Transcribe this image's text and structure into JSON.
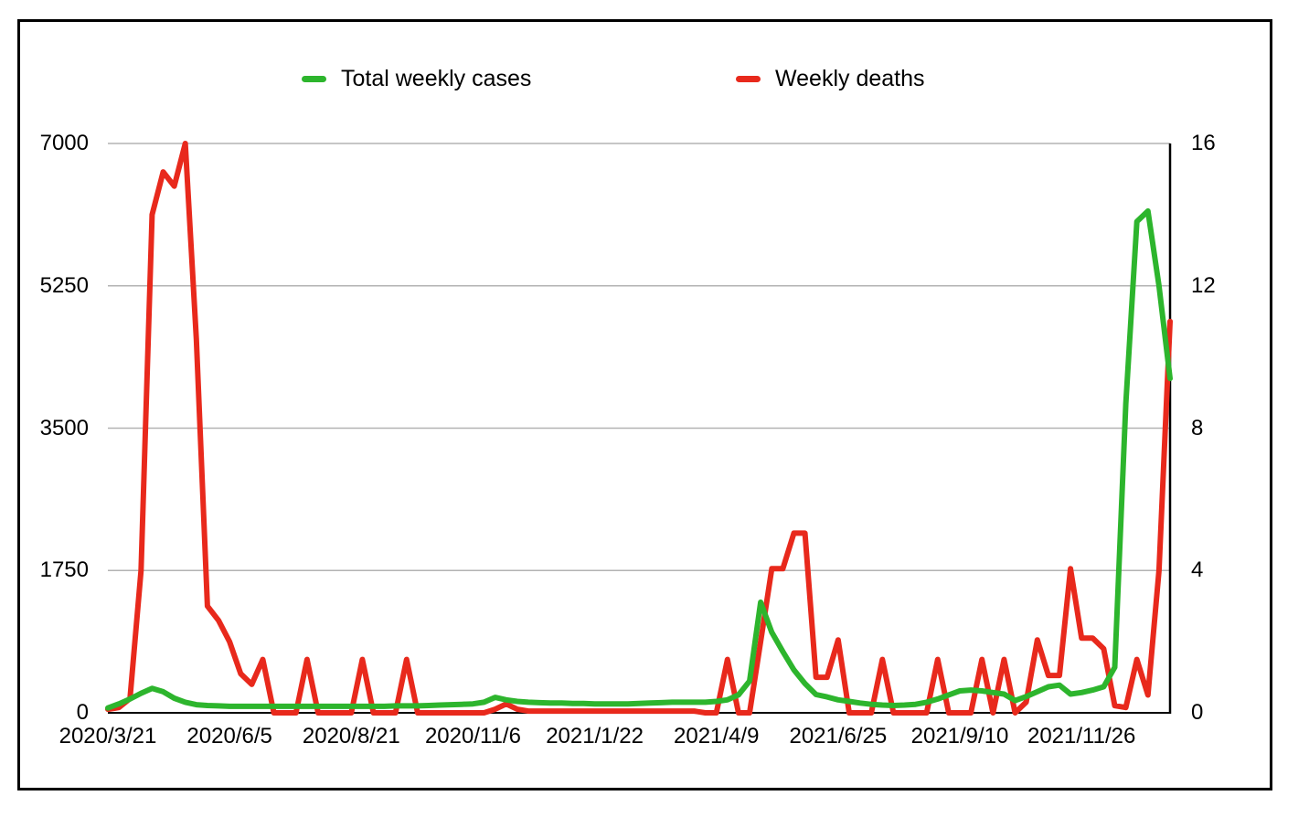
{
  "legend": [
    {
      "label": "Total weekly cases",
      "color": "#2db52d"
    },
    {
      "label": "Weekly deaths",
      "color": "#e8291c"
    }
  ],
  "axes": {
    "left_ticks": [
      "7000",
      "5250",
      "3500",
      "1750",
      "0"
    ],
    "right_ticks": [
      "16",
      "12",
      "8",
      "4",
      "0"
    ],
    "x_ticks": [
      "2020/3/21",
      "2020/6/5",
      "2020/8/21",
      "2020/11/6",
      "2021/1/22",
      "2021/4/9",
      "2021/6/25",
      "2021/9/10",
      "2021/11/26"
    ]
  },
  "chart_data": {
    "type": "line",
    "x_unit": "week_index",
    "n_points": 97,
    "x_tick_labels": [
      "2020/3/21",
      "2020/6/5",
      "2020/8/21",
      "2020/11/6",
      "2021/1/22",
      "2021/4/9",
      "2021/6/25",
      "2021/9/10",
      "2021/11/26"
    ],
    "x_tick_positions": [
      0,
      11,
      22,
      33,
      44,
      55,
      66,
      77,
      88
    ],
    "left_ylim": [
      0,
      7000
    ],
    "right_ylim": [
      0,
      16
    ],
    "grid": "horizontal",
    "grid_color": "#b3b3b3",
    "series": [
      {
        "name": "Weekly deaths",
        "axis": "right",
        "color": "#e8291c",
        "values": [
          0.1,
          0.15,
          0.4,
          4,
          14,
          15.2,
          14.8,
          16,
          10.5,
          3,
          2.6,
          2,
          1.1,
          0.8,
          1.5,
          0,
          0,
          0,
          1.5,
          0,
          0,
          0,
          0,
          1.5,
          0,
          0,
          0,
          1.5,
          0,
          0,
          0,
          0,
          0,
          0,
          0,
          0.1,
          0.25,
          0.1,
          0.05,
          0.05,
          0.05,
          0.05,
          0.05,
          0.05,
          0.05,
          0.05,
          0.05,
          0.05,
          0.05,
          0.05,
          0.05,
          0.05,
          0.05,
          0.05,
          0,
          0,
          1.5,
          0,
          0,
          2,
          4.05,
          4.05,
          5.05,
          5.05,
          1,
          1,
          2.05,
          0,
          0,
          0,
          1.5,
          0,
          0,
          0,
          0,
          1.5,
          0,
          0,
          0,
          1.5,
          0,
          1.5,
          0,
          0.3,
          2.05,
          1.05,
          1.05,
          4.05,
          2.1,
          2.1,
          1.8,
          0.2,
          0.15,
          1.5,
          0.5,
          4,
          11
        ]
      },
      {
        "name": "Total weekly cases",
        "axis": "left",
        "color": "#2db52d",
        "values": [
          60,
          110,
          170,
          240,
          300,
          260,
          180,
          130,
          100,
          90,
          85,
          80,
          80,
          80,
          80,
          80,
          80,
          80,
          80,
          80,
          80,
          80,
          80,
          80,
          80,
          80,
          85,
          85,
          85,
          90,
          95,
          100,
          105,
          110,
          130,
          190,
          160,
          140,
          130,
          125,
          120,
          120,
          115,
          115,
          110,
          110,
          110,
          110,
          115,
          120,
          125,
          130,
          130,
          130,
          130,
          140,
          160,
          220,
          390,
          1360,
          990,
          753,
          528,
          360,
          225,
          195,
          160,
          140,
          120,
          105,
          95,
          90,
          95,
          105,
          130,
          170,
          220,
          270,
          280,
          270,
          250,
          230,
          150,
          200,
          260,
          320,
          340,
          230,
          250,
          280,
          320,
          560,
          3800,
          6040,
          6170,
          5250,
          4110
        ]
      }
    ]
  }
}
